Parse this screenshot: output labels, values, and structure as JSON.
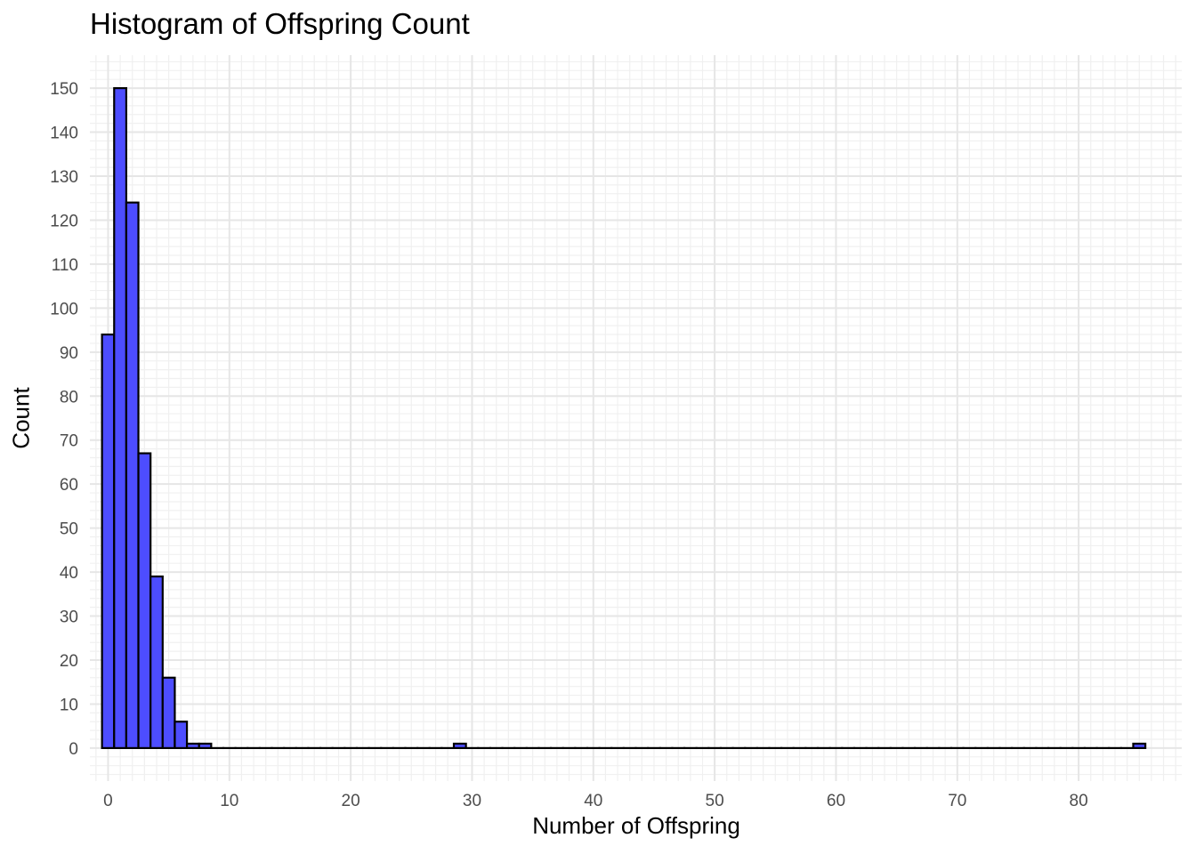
{
  "chart_data": {
    "type": "bar",
    "title": "Histogram of Offspring Count",
    "xlabel": "Number of Offspring",
    "ylabel": "Count",
    "xlim": [
      -1.5,
      88.5
    ],
    "ylim": [
      -7.5,
      157.5
    ],
    "x_ticks": [
      0,
      10,
      20,
      30,
      40,
      50,
      60,
      70,
      80
    ],
    "y_ticks": [
      0,
      10,
      20,
      30,
      40,
      50,
      60,
      70,
      80,
      90,
      100,
      110,
      120,
      130,
      140,
      150
    ],
    "grid": true,
    "bin_width": 1,
    "bins": [
      {
        "x": 0,
        "count": 94
      },
      {
        "x": 1,
        "count": 150
      },
      {
        "x": 2,
        "count": 124
      },
      {
        "x": 3,
        "count": 67
      },
      {
        "x": 4,
        "count": 39
      },
      {
        "x": 5,
        "count": 16
      },
      {
        "x": 6,
        "count": 6
      },
      {
        "x": 7,
        "count": 1
      },
      {
        "x": 8,
        "count": 1
      },
      {
        "x": 29,
        "count": 1
      },
      {
        "x": 85,
        "count": 1
      }
    ],
    "x_range": [
      0,
      85
    ],
    "colors": {
      "fill": "#4d4dff",
      "outline": "#000000",
      "grid_major": "#e6e6e6",
      "grid_minor": "#f0f0f0"
    }
  }
}
